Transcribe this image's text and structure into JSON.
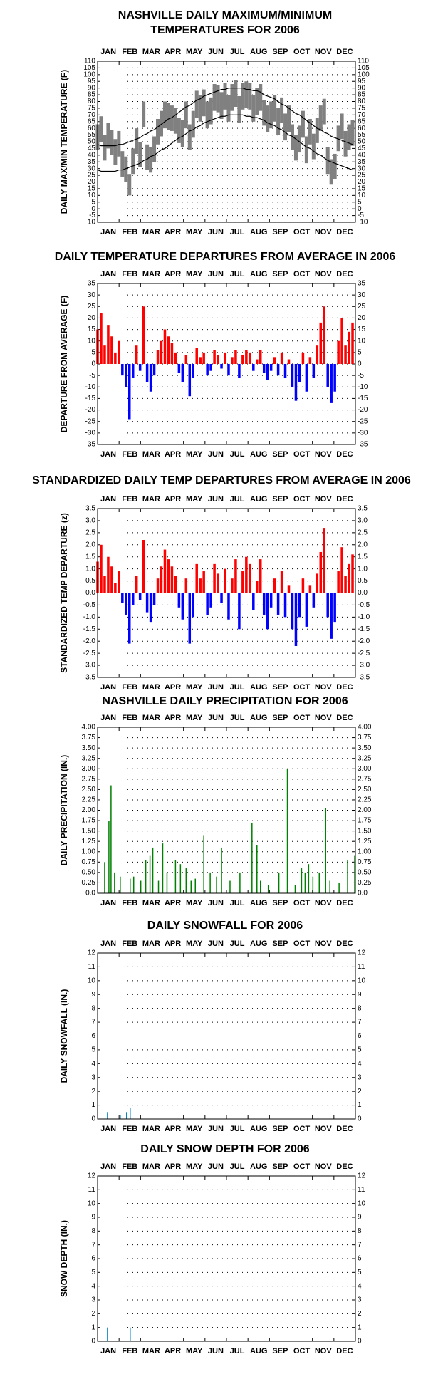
{
  "months": [
    "JAN",
    "FEB",
    "MAR",
    "APR",
    "MAY",
    "JUN",
    "JUL",
    "AUG",
    "SEP",
    "OCT",
    "NOV",
    "DEC"
  ],
  "chart_data": [
    {
      "type": "range",
      "title": [
        "NASHVILLE DAILY MAXIMUM/MINIMUM",
        "TEMPERATURES FOR 2006"
      ],
      "ylabel": "DAILY MAX/MIN TEMPERATURE (F)",
      "xlim": [
        1,
        365
      ],
      "ylim": [
        -10,
        110
      ],
      "yticks": [
        -10,
        -5,
        0,
        5,
        10,
        15,
        20,
        25,
        30,
        35,
        40,
        45,
        50,
        55,
        60,
        65,
        70,
        75,
        80,
        85,
        90,
        95,
        100,
        105,
        110
      ],
      "grid": true,
      "range_color": "#808080",
      "normal_color": "#000000",
      "x": [
        1,
        6,
        11,
        16,
        21,
        26,
        31,
        36,
        41,
        46,
        51,
        56,
        61,
        66,
        71,
        76,
        81,
        86,
        91,
        96,
        101,
        106,
        111,
        116,
        121,
        126,
        131,
        136,
        141,
        146,
        151,
        156,
        161,
        166,
        171,
        176,
        181,
        186,
        191,
        196,
        201,
        206,
        211,
        216,
        221,
        226,
        231,
        236,
        241,
        246,
        251,
        256,
        261,
        266,
        271,
        276,
        281,
        286,
        291,
        296,
        301,
        306,
        311,
        316,
        321,
        326,
        331,
        336,
        341,
        346,
        351,
        356,
        361
      ],
      "max": [
        63,
        69,
        55,
        64,
        59,
        52,
        58,
        43,
        39,
        26,
        45,
        60,
        50,
        80,
        48,
        46,
        54,
        67,
        73,
        80,
        79,
        77,
        75,
        68,
        66,
        80,
        63,
        73,
        88,
        85,
        89,
        80,
        83,
        93,
        92,
        87,
        94,
        85,
        93,
        96,
        84,
        94,
        95,
        94,
        85,
        90,
        93,
        81,
        77,
        80,
        85,
        75,
        83,
        71,
        77,
        63,
        55,
        62,
        73,
        54,
        67,
        56,
        68,
        77,
        82,
        46,
        37,
        41,
        62,
        71,
        58,
        63,
        66
      ],
      "min": [
        44,
        50,
        36,
        45,
        40,
        33,
        39,
        24,
        20,
        10,
        26,
        41,
        31,
        61,
        29,
        27,
        35,
        48,
        54,
        60,
        59,
        58,
        56,
        49,
        46,
        60,
        44,
        53,
        68,
        65,
        69,
        60,
        63,
        73,
        72,
        67,
        74,
        65,
        73,
        76,
        64,
        74,
        75,
        74,
        65,
        70,
        73,
        62,
        57,
        60,
        65,
        55,
        64,
        51,
        57,
        44,
        36,
        42,
        53,
        34,
        48,
        37,
        49,
        58,
        63,
        26,
        18,
        22,
        43,
        52,
        39,
        44,
        47
      ],
      "normal_max": [
        48,
        47,
        47,
        47,
        47,
        47,
        48,
        48,
        49,
        50,
        51,
        52,
        53,
        55,
        56,
        58,
        59,
        61,
        63,
        65,
        67,
        68,
        70,
        72,
        74,
        76,
        77,
        79,
        81,
        82,
        84,
        85,
        86,
        87,
        88,
        89,
        89,
        90,
        90,
        90,
        90,
        90,
        89,
        89,
        88,
        88,
        87,
        85,
        84,
        83,
        82,
        80,
        78,
        77,
        75,
        73,
        71,
        70,
        68,
        66,
        64,
        62,
        60,
        59,
        57,
        56,
        54,
        53,
        52,
        51,
        50,
        49,
        48
      ],
      "normal_min": [
        29,
        28,
        28,
        28,
        28,
        28,
        29,
        29,
        30,
        31,
        32,
        33,
        34,
        36,
        37,
        39,
        40,
        42,
        44,
        45,
        47,
        49,
        51,
        53,
        54,
        56,
        58,
        59,
        61,
        62,
        64,
        65,
        66,
        67,
        68,
        69,
        69,
        70,
        70,
        70,
        70,
        70,
        69,
        69,
        68,
        68,
        67,
        66,
        64,
        63,
        62,
        60,
        59,
        57,
        55,
        54,
        52,
        50,
        48,
        46,
        45,
        43,
        41,
        40,
        38,
        36,
        35,
        34,
        33,
        32,
        31,
        30,
        29
      ]
    },
    {
      "type": "bar",
      "title": [
        "DAILY TEMPERATURE DEPARTURES FROM AVERAGE IN 2006"
      ],
      "ylabel": "DEPARTURE FROM AVERAGE (F)",
      "xlim": [
        1,
        365
      ],
      "ylim": [
        -35,
        35
      ],
      "yticks": [
        -35,
        -30,
        -25,
        -20,
        -15,
        -10,
        -5,
        0,
        5,
        10,
        15,
        20,
        25,
        30,
        35
      ],
      "grid": true,
      "pos_color": "#ff0000",
      "neg_color": "#0000ff",
      "bar_width": 3.5,
      "x": [
        1,
        6,
        11,
        16,
        21,
        26,
        31,
        36,
        41,
        46,
        51,
        56,
        61,
        66,
        71,
        76,
        81,
        86,
        91,
        96,
        101,
        106,
        111,
        116,
        121,
        126,
        131,
        136,
        141,
        146,
        151,
        156,
        161,
        166,
        171,
        176,
        181,
        186,
        191,
        196,
        201,
        206,
        211,
        216,
        221,
        226,
        231,
        236,
        241,
        246,
        251,
        256,
        261,
        266,
        271,
        276,
        281,
        286,
        291,
        296,
        301,
        306,
        311,
        316,
        321,
        326,
        331,
        336,
        341,
        346,
        351,
        356,
        361
      ],
      "values": [
        15,
        22,
        8,
        17,
        12,
        5,
        10,
        -5,
        -10,
        -24,
        -6,
        8,
        -3,
        25,
        -8,
        -12,
        -5,
        6,
        10,
        15,
        12,
        9,
        5,
        -4,
        -8,
        4,
        -14,
        -6,
        7,
        3,
        5,
        -5,
        -3,
        6,
        4,
        -2,
        5,
        -5,
        3,
        6,
        -6,
        4,
        6,
        5,
        -3,
        2,
        6,
        -4,
        -7,
        -3,
        3,
        -5,
        5,
        -6,
        2,
        -10,
        -16,
        -8,
        5,
        -12,
        3,
        -6,
        8,
        18,
        25,
        -10,
        -17,
        -12,
        10,
        20,
        8,
        14,
        18
      ]
    },
    {
      "type": "bar",
      "title": [
        "STANDARDIZED DAILY TEMP DEPARTURES FROM AVERAGE IN 2006"
      ],
      "ylabel": "STANDARDIZED TEMP DEPARTURE (z)",
      "xlim": [
        1,
        365
      ],
      "ylim": [
        -3.5,
        3.5
      ],
      "yticks": [
        -3.5,
        {
          "value": -3,
          "label": "-3.0"
        },
        -2.5,
        {
          "value": -2,
          "label": "-2.0"
        },
        -1.5,
        {
          "value": -1,
          "label": "-1.0"
        },
        -0.5,
        {
          "value": 0,
          "label": "0.0"
        },
        0.5,
        {
          "value": 1,
          "label": "1.0"
        },
        1.5,
        {
          "value": 2,
          "label": "2.0"
        },
        2.5,
        {
          "value": 3,
          "label": "3.0"
        },
        3.5
      ],
      "grid": true,
      "pos_color": "#ff0000",
      "neg_color": "#0000ff",
      "bar_width": 3.5,
      "x": [
        1,
        6,
        11,
        16,
        21,
        26,
        31,
        36,
        41,
        46,
        51,
        56,
        61,
        66,
        71,
        76,
        81,
        86,
        91,
        96,
        101,
        106,
        111,
        116,
        121,
        126,
        131,
        136,
        141,
        146,
        151,
        156,
        161,
        166,
        171,
        176,
        181,
        186,
        191,
        196,
        201,
        206,
        211,
        216,
        221,
        226,
        231,
        236,
        241,
        246,
        251,
        256,
        261,
        266,
        271,
        276,
        281,
        286,
        291,
        296,
        301,
        306,
        311,
        316,
        321,
        326,
        331,
        336,
        341,
        346,
        351,
        356,
        361
      ],
      "values": [
        1.3,
        2.0,
        0.7,
        1.5,
        1.1,
        0.4,
        0.9,
        -0.4,
        -0.9,
        -2.1,
        -0.5,
        0.7,
        -0.3,
        2.2,
        -0.8,
        -1.2,
        -0.5,
        0.6,
        1.1,
        1.8,
        1.4,
        1.1,
        0.7,
        -0.6,
        -1.1,
        0.6,
        -2.1,
        -1.0,
        1.2,
        0.6,
        0.9,
        -0.9,
        -0.6,
        1.2,
        0.8,
        -0.4,
        1.0,
        -1.1,
        0.6,
        1.4,
        -1.5,
        0.9,
        1.5,
        1.2,
        -0.7,
        0.5,
        1.4,
        -0.9,
        -1.5,
        -0.6,
        0.6,
        -0.9,
        0.9,
        -1.0,
        0.3,
        -1.5,
        -2.2,
        -1.0,
        0.6,
        -1.4,
        0.3,
        -0.6,
        0.8,
        1.7,
        2.7,
        -1.0,
        -1.9,
        -1.2,
        0.9,
        1.9,
        0.7,
        1.2,
        1.6
      ]
    },
    {
      "type": "bar",
      "title": [
        "NASHVILLE DAILY PRECIPITATION FOR 2006"
      ],
      "ylabel": "DAILY PRECIPITATION (IN.)",
      "xlim": [
        1,
        365
      ],
      "ylim": [
        0,
        4
      ],
      "yticks": [
        {
          "value": 0,
          "label": "0.0"
        },
        0.25,
        {
          "value": 0.5,
          "label": "0.50"
        },
        0.75,
        {
          "value": 1,
          "label": "1.00"
        },
        1.25,
        {
          "value": 1.5,
          "label": "1.50"
        },
        1.75,
        {
          "value": 2,
          "label": "2.00"
        },
        2.25,
        {
          "value": 2.5,
          "label": "2.50"
        },
        2.75,
        {
          "value": 3,
          "label": "3.00"
        },
        3.25,
        {
          "value": 3.5,
          "label": "3.50"
        },
        3.75,
        {
          "value": 4,
          "label": "4.00"
        }
      ],
      "grid": true,
      "color": "#008000",
      "bar_width": 1.5,
      "x": [
        11,
        17,
        20,
        25,
        33,
        47,
        52,
        62,
        69,
        75,
        79,
        87,
        93,
        99,
        111,
        118,
        126,
        133,
        139,
        151,
        160,
        169,
        176,
        188,
        202,
        219,
        226,
        231,
        242,
        257,
        269,
        280,
        289,
        294,
        299,
        305,
        314,
        323,
        329,
        342,
        354,
        364
      ],
      "values": [
        0.75,
        1.75,
        2.6,
        0.5,
        0.4,
        0.35,
        0.4,
        0.3,
        0.8,
        0.9,
        1.1,
        0.3,
        1.2,
        0.5,
        0.8,
        0.7,
        0.6,
        0.3,
        0.35,
        1.4,
        0.5,
        0.4,
        1.1,
        0.3,
        0.5,
        1.7,
        1.15,
        0.3,
        0.2,
        0.5,
        3.0,
        0.2,
        0.6,
        0.5,
        0.7,
        0.4,
        0.5,
        2.05,
        0.3,
        0.25,
        0.8,
        0.9
      ]
    },
    {
      "type": "bar",
      "title": [
        "DAILY SNOWFALL FOR 2006"
      ],
      "ylabel": "DAILY SNOWFALL (IN.)",
      "xlim": [
        1,
        365
      ],
      "ylim": [
        0,
        12
      ],
      "yticks": [
        0,
        1,
        2,
        3,
        4,
        5,
        6,
        7,
        8,
        9,
        10,
        11,
        12
      ],
      "grid": true,
      "color": "#0080c0",
      "bar_width": 1.5,
      "x": [
        15,
        33,
        42,
        47
      ],
      "values": [
        0.5,
        0.3,
        0.5,
        0.8
      ]
    },
    {
      "type": "bar",
      "title": [
        "DAILY SNOW DEPTH FOR 2006"
      ],
      "ylabel": "SNOW DEPTH (IN.)",
      "xlim": [
        1,
        365
      ],
      "ylim": [
        0,
        12
      ],
      "yticks": [
        0,
        1,
        2,
        3,
        4,
        5,
        6,
        7,
        8,
        9,
        10,
        11,
        12
      ],
      "grid": true,
      "color": "#0080c0",
      "bar_width": 1.5,
      "x": [
        15,
        47
      ],
      "values": [
        1,
        1
      ]
    }
  ]
}
